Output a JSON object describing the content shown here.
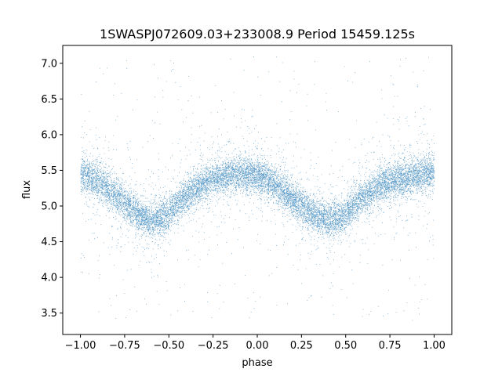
{
  "chart_data": {
    "type": "scatter",
    "title": "1SWASPJ072609.03+233008.9 Period 15459.125s",
    "xlabel": "phase",
    "ylabel": "flux",
    "xlim": [
      -1.1,
      1.1
    ],
    "ylim": [
      3.2,
      7.25
    ],
    "xticks": [
      -1.0,
      -0.75,
      -0.5,
      -0.25,
      0.0,
      0.25,
      0.5,
      0.75,
      1.0
    ],
    "xtick_labels": [
      "−1.00",
      "−0.75",
      "−0.50",
      "−0.25",
      "0.00",
      "0.25",
      "0.50",
      "0.75",
      "1.00"
    ],
    "yticks": [
      3.5,
      4.0,
      4.5,
      5.0,
      5.5,
      6.0,
      6.5,
      7.0
    ],
    "ytick_labels": [
      "3.5",
      "4.0",
      "4.5",
      "5.0",
      "5.5",
      "6.0",
      "6.5",
      "7.0"
    ],
    "grid": false,
    "marker_color": "#1f77b4",
    "series": [
      {
        "x": [
          -1.0,
          -0.95,
          -0.9,
          -0.85,
          -0.8,
          -0.75,
          -0.7,
          -0.65,
          -0.6,
          -0.55,
          -0.5,
          -0.45,
          -0.4,
          -0.35,
          -0.3,
          -0.25,
          -0.2,
          -0.15,
          -0.1,
          -0.05,
          0.0,
          0.05,
          0.1,
          0.15,
          0.2,
          0.25,
          0.3,
          0.35,
          0.4,
          0.45,
          0.5,
          0.55,
          0.6,
          0.65,
          0.7,
          0.75,
          0.8,
          0.85,
          0.9,
          0.95,
          1.0
        ],
        "y": [
          5.45,
          5.4,
          5.35,
          5.25,
          5.15,
          5.05,
          4.95,
          4.85,
          4.8,
          4.82,
          4.9,
          5.05,
          5.15,
          5.25,
          5.32,
          5.38,
          5.42,
          5.45,
          5.46,
          5.45,
          5.43,
          5.38,
          5.3,
          5.2,
          5.1,
          5.0,
          4.92,
          4.85,
          4.8,
          4.82,
          4.9,
          5.02,
          5.12,
          5.22,
          5.3,
          5.35,
          5.38,
          5.4,
          5.43,
          5.45,
          5.45
        ]
      }
    ]
  }
}
